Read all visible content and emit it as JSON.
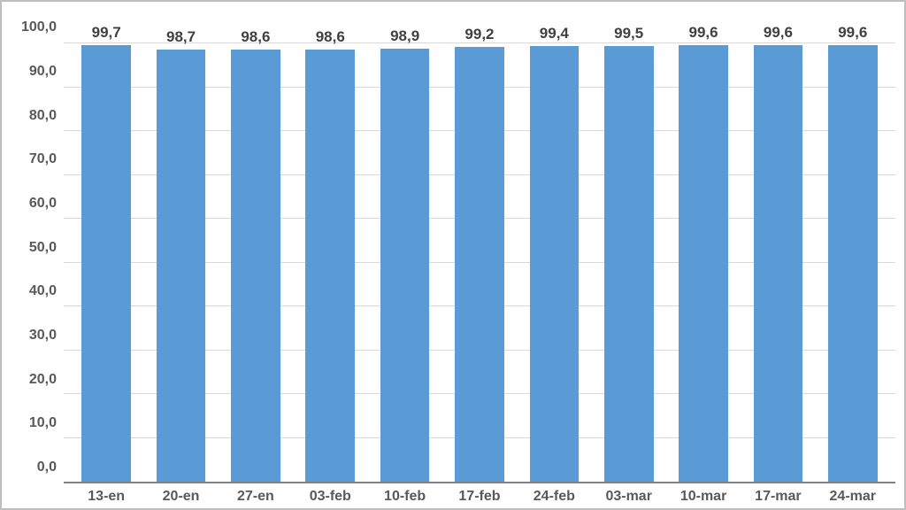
{
  "chart": {
    "type": "bar",
    "categories": [
      "13-en",
      "20-en",
      "27-en",
      "03-feb",
      "10-feb",
      "17-feb",
      "24-feb",
      "03-mar",
      "10-mar",
      "17-mar",
      "24-mar"
    ],
    "values": [
      99.7,
      98.7,
      98.6,
      98.6,
      98.9,
      99.2,
      99.4,
      99.5,
      99.6,
      99.6,
      99.6
    ],
    "value_labels": [
      "99,7",
      "98,7",
      "98,6",
      "98,6",
      "98,9",
      "99,2",
      "99,4",
      "99,5",
      "99,6",
      "99,6",
      "99,6"
    ],
    "bar_color": "#5b9bd5",
    "background_color": "#ffffff",
    "grid_color": "#d9d9d9",
    "axis_line_color": "#808080",
    "border_color": "#bfbfbf",
    "label_color": "#595959",
    "value_label_color": "#404040",
    "ylim": [
      0,
      100
    ],
    "ytick_step": 10,
    "ytick_labels": [
      "0,0",
      "10,0",
      "20,0",
      "30,0",
      "40,0",
      "50,0",
      "60,0",
      "70,0",
      "80,0",
      "90,0",
      "100,0"
    ],
    "bar_width_pct": 66,
    "value_label_fontsize": 17,
    "axis_label_fontsize": 16,
    "font_weight": 700,
    "label_headroom_pct": 7
  }
}
